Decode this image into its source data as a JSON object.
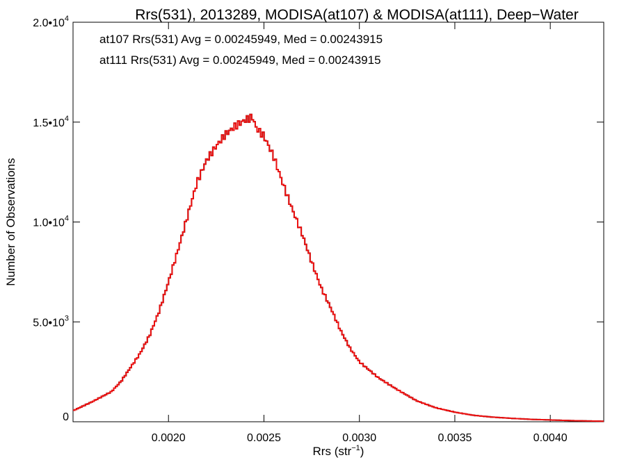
{
  "chart_data": {
    "type": "histogram",
    "title": "Rrs(531), 2013289, MODISA(at107) & MODISA(at111), Deep−Water",
    "xlabel": "Rrs (str",
    "xlabel_sup": "−1",
    "xlabel_end": ")",
    "ylabel": "Number of Observations",
    "xlim": [
      0.0015,
      0.00428
    ],
    "ylim": [
      0,
      20000
    ],
    "x_ticks": [
      {
        "value": 0.002,
        "label": "0.0020"
      },
      {
        "value": 0.0025,
        "label": "0.0025"
      },
      {
        "value": 0.003,
        "label": "0.0030"
      },
      {
        "value": 0.0035,
        "label": "0.0035"
      },
      {
        "value": 0.004,
        "label": "0.0040"
      }
    ],
    "y_ticks": [
      {
        "value": 0,
        "mant": "0",
        "exp": ""
      },
      {
        "value": 5000,
        "mant": "5.0•10",
        "exp": "3"
      },
      {
        "value": 10000,
        "mant": "1.0•10",
        "exp": "4"
      },
      {
        "value": 15000,
        "mant": "1.5•10",
        "exp": "4"
      },
      {
        "value": 20000,
        "mant": "2.0•10",
        "exp": "4"
      }
    ],
    "grid": false,
    "legend_position": "top-left",
    "series": [
      {
        "name": "at107",
        "color": "#000000",
        "annotation": "at107 Rrs(531) Avg = 0.00245949, Med = 0.00243915",
        "x": [
          0.0015,
          0.0016,
          0.0017,
          0.00175,
          0.0018,
          0.00185,
          0.0019,
          0.00195,
          0.002,
          0.00205,
          0.0021,
          0.00215,
          0.0022,
          0.00225,
          0.0023,
          0.00235,
          0.0024,
          0.00244,
          0.00246,
          0.0025,
          0.00255,
          0.0026,
          0.00265,
          0.0027,
          0.00275,
          0.0028,
          0.00285,
          0.0029,
          0.00295,
          0.003,
          0.0031,
          0.0032,
          0.0033,
          0.0034,
          0.0035,
          0.0036,
          0.0037,
          0.0038,
          0.0039,
          0.004,
          0.0041,
          0.0042,
          0.00428
        ],
        "y": [
          550,
          1000,
          1500,
          2000,
          2700,
          3400,
          4300,
          5500,
          7000,
          8600,
          10300,
          12000,
          13100,
          13800,
          14400,
          14800,
          15100,
          15250,
          14700,
          14300,
          13300,
          11900,
          10600,
          9400,
          8000,
          6700,
          5700,
          4600,
          3700,
          3000,
          2200,
          1600,
          1050,
          700,
          480,
          320,
          230,
          170,
          120,
          90,
          60,
          40,
          25
        ]
      },
      {
        "name": "at111",
        "color": "#ee1111",
        "annotation": "at111 Rrs(531) Avg = 0.00245949, Med = 0.00243915",
        "x": [
          0.0015,
          0.0016,
          0.0017,
          0.00175,
          0.0018,
          0.00185,
          0.0019,
          0.00195,
          0.002,
          0.00205,
          0.0021,
          0.00215,
          0.0022,
          0.00225,
          0.0023,
          0.00235,
          0.0024,
          0.00244,
          0.00246,
          0.0025,
          0.00255,
          0.0026,
          0.00265,
          0.0027,
          0.00275,
          0.0028,
          0.00285,
          0.0029,
          0.00295,
          0.003,
          0.0031,
          0.0032,
          0.0033,
          0.0034,
          0.0035,
          0.0036,
          0.0037,
          0.0038,
          0.0039,
          0.004,
          0.0041,
          0.0042,
          0.00428
        ],
        "y": [
          550,
          1000,
          1500,
          2000,
          2700,
          3400,
          4300,
          5500,
          7000,
          8600,
          10300,
          12000,
          13100,
          13800,
          14400,
          14800,
          15100,
          15250,
          14700,
          14300,
          13300,
          11900,
          10600,
          9400,
          8000,
          6700,
          5700,
          4600,
          3700,
          3000,
          2200,
          1600,
          1050,
          700,
          480,
          320,
          230,
          170,
          120,
          90,
          60,
          40,
          25
        ]
      }
    ]
  }
}
